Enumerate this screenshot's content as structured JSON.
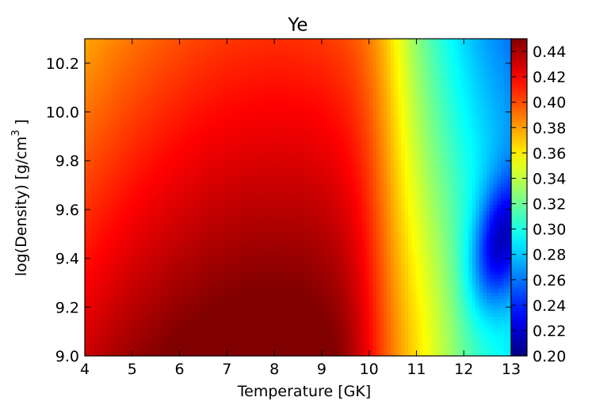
{
  "chart_data": {
    "type": "heatmap",
    "title": "Ye",
    "xlabel": "Temperature [GK]",
    "ylabel": "log(Density) [g/cm",
    "ylabel_unit_exponent": "3",
    "ylabel_close": "]",
    "x_range": [
      4,
      13
    ],
    "y_range": [
      9.0,
      10.3
    ],
    "x_ticks": [
      "4",
      "5",
      "6",
      "7",
      "8",
      "9",
      "10",
      "11",
      "12",
      "13"
    ],
    "y_ticks": [
      "9.0",
      "9.2",
      "9.4",
      "9.6",
      "9.8",
      "10.0",
      "10.2"
    ],
    "colorbar": {
      "range": [
        0.2,
        0.45
      ],
      "colormap": "jet",
      "ticks": [
        "0.20",
        "0.22",
        "0.24",
        "0.26",
        "0.28",
        "0.30",
        "0.32",
        "0.34",
        "0.36",
        "0.38",
        "0.40",
        "0.42",
        "0.44"
      ]
    },
    "field_samples": {
      "note_x": [
        4,
        5,
        6,
        7,
        8,
        9,
        10,
        11,
        12,
        13
      ],
      "density_9_0": [
        0.43,
        0.436,
        0.441,
        0.444,
        0.442,
        0.425,
        0.38,
        0.34,
        0.3,
        0.285
      ],
      "density_9_3": [
        0.42,
        0.425,
        0.428,
        0.428,
        0.422,
        0.405,
        0.37,
        0.33,
        0.27,
        0.255
      ],
      "density_9_6": [
        0.412,
        0.415,
        0.416,
        0.414,
        0.407,
        0.39,
        0.363,
        0.338,
        0.275,
        0.25
      ],
      "density_10_0": [
        0.398,
        0.4,
        0.4,
        0.397,
        0.39,
        0.378,
        0.36,
        0.34,
        0.31,
        0.285
      ],
      "density_10_3": [
        0.386,
        0.385,
        0.384,
        0.38,
        0.374,
        0.366,
        0.352,
        0.335,
        0.318,
        0.3
      ]
    }
  }
}
